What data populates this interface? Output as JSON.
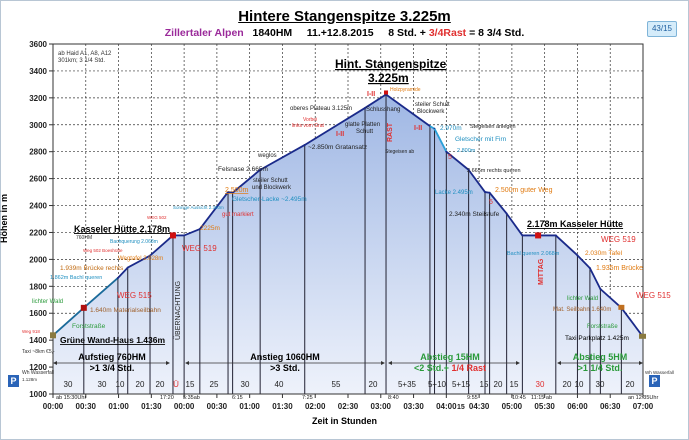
{
  "badge": "43/15",
  "parking_icon": "P",
  "chart_data": {
    "type": "area",
    "title": "Hintere Stangenspitze 3.225m",
    "subtitle": {
      "region": "Zillertaler Alpen",
      "ascent": "1840HM",
      "date": "11.+12.8.2015",
      "time": "8 Std. +",
      "rest": "3/4Rast",
      "total": "= 8 3/4 Std."
    },
    "ylabel": "Höhen in m",
    "xlabel": "Zeit in Stunden",
    "ylim": [
      1000,
      3600
    ],
    "yticks": [
      1000,
      1200,
      1400,
      1600,
      1800,
      2000,
      2200,
      2400,
      2600,
      2800,
      3000,
      3200,
      3400,
      3600
    ],
    "xticks": [
      "00:00",
      "00:30",
      "01:00",
      "01:30",
      "00:00",
      "00:30",
      "01:00",
      "01:30",
      "02:00",
      "02:30",
      "03:00",
      "03:30",
      "04:00",
      "04:30",
      "05:00",
      "05:30",
      "06:00",
      "06:30",
      "07:00"
    ],
    "grid": true,
    "colors": {
      "line": "#1a2a8a",
      "fill_top": "#9fb7e4",
      "fill_bottom": "#eef2fb",
      "glacier": "#2aa0d8",
      "red": "#e03030",
      "orange": "#e07a10",
      "green": "#2a9a3a",
      "cyan": "#1e8fc0",
      "purple": "#9a2a9a"
    },
    "profile_hours_elevation": [
      [
        0,
        1436
      ],
      [
        0.47,
        1640
      ],
      [
        0.99,
        1862
      ],
      [
        1.14,
        1939
      ],
      [
        1.48,
        2028
      ],
      [
        1.83,
        2178
      ],
      [
        2.0,
        2178
      ],
      [
        2.24,
        2225
      ],
      [
        2.67,
        2500
      ],
      [
        2.74,
        2495
      ],
      [
        3.16,
        2665
      ],
      [
        3.84,
        2850
      ],
      [
        4.76,
        3125
      ],
      [
        5.08,
        3225
      ],
      [
        5.75,
        2990
      ],
      [
        5.82,
        2970
      ],
      [
        6.0,
        2800
      ],
      [
        6.34,
        2665
      ],
      [
        6.59,
        2500
      ],
      [
        6.66,
        2495
      ],
      [
        6.92,
        2340
      ],
      [
        7.16,
        2178
      ],
      [
        7.67,
        2178
      ],
      [
        8.0,
        2030
      ],
      [
        8.19,
        1935
      ],
      [
        8.35,
        1780
      ],
      [
        8.67,
        1640
      ],
      [
        9.0,
        1425
      ]
    ],
    "annotations": [
      {
        "text": "ab Haid A1, A8, A12",
        "color": "#333"
      },
      {
        "text": "301km; 3 1/4 Std.",
        "color": "#333"
      },
      {
        "text": "Hint. Stangenspitze",
        "color": "#000"
      },
      {
        "text": "3.225m",
        "color": "#000"
      },
      {
        "text": "Holzpyramide",
        "color": "#e07a10"
      },
      {
        "text": "I-II",
        "color": "#e03030"
      },
      {
        "text": "oberes Plateau 3.125m",
        "color": "#222"
      },
      {
        "text": "Schlusshang",
        "color": "#222"
      },
      {
        "text": "steiler Schutt",
        "color": "#222"
      },
      {
        "text": "Blockwerk",
        "color": "#222"
      },
      {
        "text": "I-II",
        "color": "#e03030"
      },
      {
        "text": "Vorbei",
        "color": "#e03030"
      },
      {
        "text": "links vom Grat",
        "color": "#e03030"
      },
      {
        "text": "glatte Platten",
        "color": "#222"
      },
      {
        "text": "Schutt",
        "color": "#222"
      },
      {
        "text": "I-II",
        "color": "#e03030"
      },
      {
        "text": "~2.850m Gratansatz",
        "color": "#222"
      },
      {
        "text": "weglos",
        "color": "#222"
      },
      {
        "text": "Felsnase 2.665m",
        "color": "#222"
      },
      {
        "text": "steiler Schutt",
        "color": "#222"
      },
      {
        "text": "und Blockwerk",
        "color": "#222"
      },
      {
        "text": "2.500m",
        "color": "#e07a10"
      },
      {
        "text": "Gletscher-Lacke ~2.495m",
        "color": "#1e8fc0"
      },
      {
        "text": "gut markiert",
        "color": "#e03030"
      },
      {
        "text": "Sonnige Aussicht 2.380m",
        "color": "#1e8fc0"
      },
      {
        "text": "WEG 502",
        "color": "#e03030"
      },
      {
        "text": "2225m",
        "color": "#e07a10"
      },
      {
        "text": "Kasseler Hütte 2.178m",
        "color": "#000"
      },
      {
        "text": "760HM",
        "color": "#333"
      },
      {
        "text": "WEG 519",
        "color": "#e03030"
      },
      {
        "text": "Bachquerung 2.068m",
        "color": "#1e8fc0"
      },
      {
        "text": "Weg 502 Boeshütte",
        "color": "#e03030"
      },
      {
        "text": "Wegtafel 2.028m",
        "color": "#e07a10"
      },
      {
        "text": "1.939m Brücke rechts",
        "color": "#c06a10"
      },
      {
        "text": "1.862m Bachl queren",
        "color": "#1e8fc0"
      },
      {
        "text": "WEG 515",
        "color": "#e03030"
      },
      {
        "text": "lichter Wald",
        "color": "#2a9a3a"
      },
      {
        "text": "1.640m Materialseilbahn",
        "color": "#a0602a"
      },
      {
        "text": "Weg 918",
        "color": "#e03030"
      },
      {
        "text": "Forststraße",
        "color": "#2a9a3a"
      },
      {
        "text": "Grüne Wand-Haus 1.436m",
        "color": "#000"
      },
      {
        "text": "Taxi ~8km €5,-",
        "color": "#333"
      },
      {
        "text": "Wh Wasserfall",
        "color": "#333"
      },
      {
        "text": "1.128m",
        "color": "#333"
      },
      {
        "text": "Stegeisen anlegen",
        "color": "#222"
      },
      {
        "text": "2.970m",
        "color": "#1e8fc0"
      },
      {
        "text": "Gletscher mit Firn",
        "color": "#1e8fc0"
      },
      {
        "text": "2.800m",
        "color": "#1e8fc0"
      },
      {
        "text": "Stegeisen ab",
        "color": "#222"
      },
      {
        "text": "5",
        "color": "#e03030"
      },
      {
        "text": "2.665m rechts queren",
        "color": "#222"
      },
      {
        "text": "Lacke 2.495m",
        "color": "#1e8fc0"
      },
      {
        "text": "2.500m guter Weg",
        "color": "#e07a10"
      },
      {
        "text": "5",
        "color": "#e03030"
      },
      {
        "text": "2.340m Steilstufe",
        "color": "#222"
      },
      {
        "text": "2.178m Kasseler Hütte",
        "color": "#000"
      },
      {
        "text": "WEG 519",
        "color": "#e03030"
      },
      {
        "text": "Bachl queren 2.068m",
        "color": "#1e8fc0"
      },
      {
        "text": "2.030m Tafel",
        "color": "#e07a10"
      },
      {
        "text": "1.935m Brücke",
        "color": "#e07a10"
      },
      {
        "text": "WEG 515",
        "color": "#e03030"
      },
      {
        "text": "lichter Wald",
        "color": "#2a9a3a"
      },
      {
        "text": "Mat. Seilbahn 1.640m",
        "color": "#a0602a"
      },
      {
        "text": "Forststraße",
        "color": "#2a9a3a"
      },
      {
        "text": "Taxi Parkplatz 1.425m",
        "color": "#000"
      },
      {
        "text": "Wh Wasserfall",
        "color": "#333"
      },
      {
        "text": "RAST",
        "color": "#e03030"
      },
      {
        "text": "ÜBERNACHTUNG",
        "color": "#222"
      },
      {
        "text": "MITTAG",
        "color": "#e03030"
      }
    ],
    "sections": [
      {
        "title": "Aufstieg 760HM",
        "duration": ">1 3/4 Std.",
        "color": "#000"
      },
      {
        "title": "Anstieg 1060HM",
        "duration": ">3 Std.",
        "color": "#000"
      },
      {
        "title": "Abstieg 15HM",
        "duration": "<2 Std.+",
        "rest": "1/4 Rast",
        "color": "#2a9a3a"
      },
      {
        "title": "Abstieg 5HM",
        "duration": ">1 1/4 Std.",
        "color": "#2a9a3a"
      }
    ],
    "segment_minutes": [
      {
        "text": "30",
        "color": "#222"
      },
      {
        "text": "30",
        "color": "#222"
      },
      {
        "text": "10",
        "color": "#222"
      },
      {
        "text": "20",
        "color": "#222"
      },
      {
        "text": "20",
        "color": "#222"
      },
      {
        "text": "Ü",
        "color": "#e03030"
      },
      {
        "text": "15",
        "color": "#222"
      },
      {
        "text": "25",
        "color": "#222"
      },
      {
        "text": "30",
        "color": "#222"
      },
      {
        "text": "40",
        "color": "#222"
      },
      {
        "text": "55",
        "color": "#222"
      },
      {
        "text": "20",
        "color": "#222"
      },
      {
        "text": "5+35",
        "color": "#222"
      },
      {
        "text": "5+10",
        "color": "#222"
      },
      {
        "text": "5+15",
        "color": "#222"
      },
      {
        "text": "15",
        "color": "#222"
      },
      {
        "text": "20",
        "color": "#222"
      },
      {
        "text": "15",
        "color": "#222"
      },
      {
        "text": "30",
        "color": "#e03030"
      },
      {
        "text": "20",
        "color": "#222"
      },
      {
        "text": "10",
        "color": "#222"
      },
      {
        "text": "30",
        "color": "#222"
      },
      {
        "text": "20",
        "color": "#222"
      }
    ],
    "clock_times": [
      "ab 15:30Uhr",
      "17:20",
      "5:35ab",
      "6:15",
      "7:25",
      "8:40",
      "9:55",
      "15",
      "10:45",
      "11:15 ab",
      "an 12:35Uhr"
    ]
  }
}
